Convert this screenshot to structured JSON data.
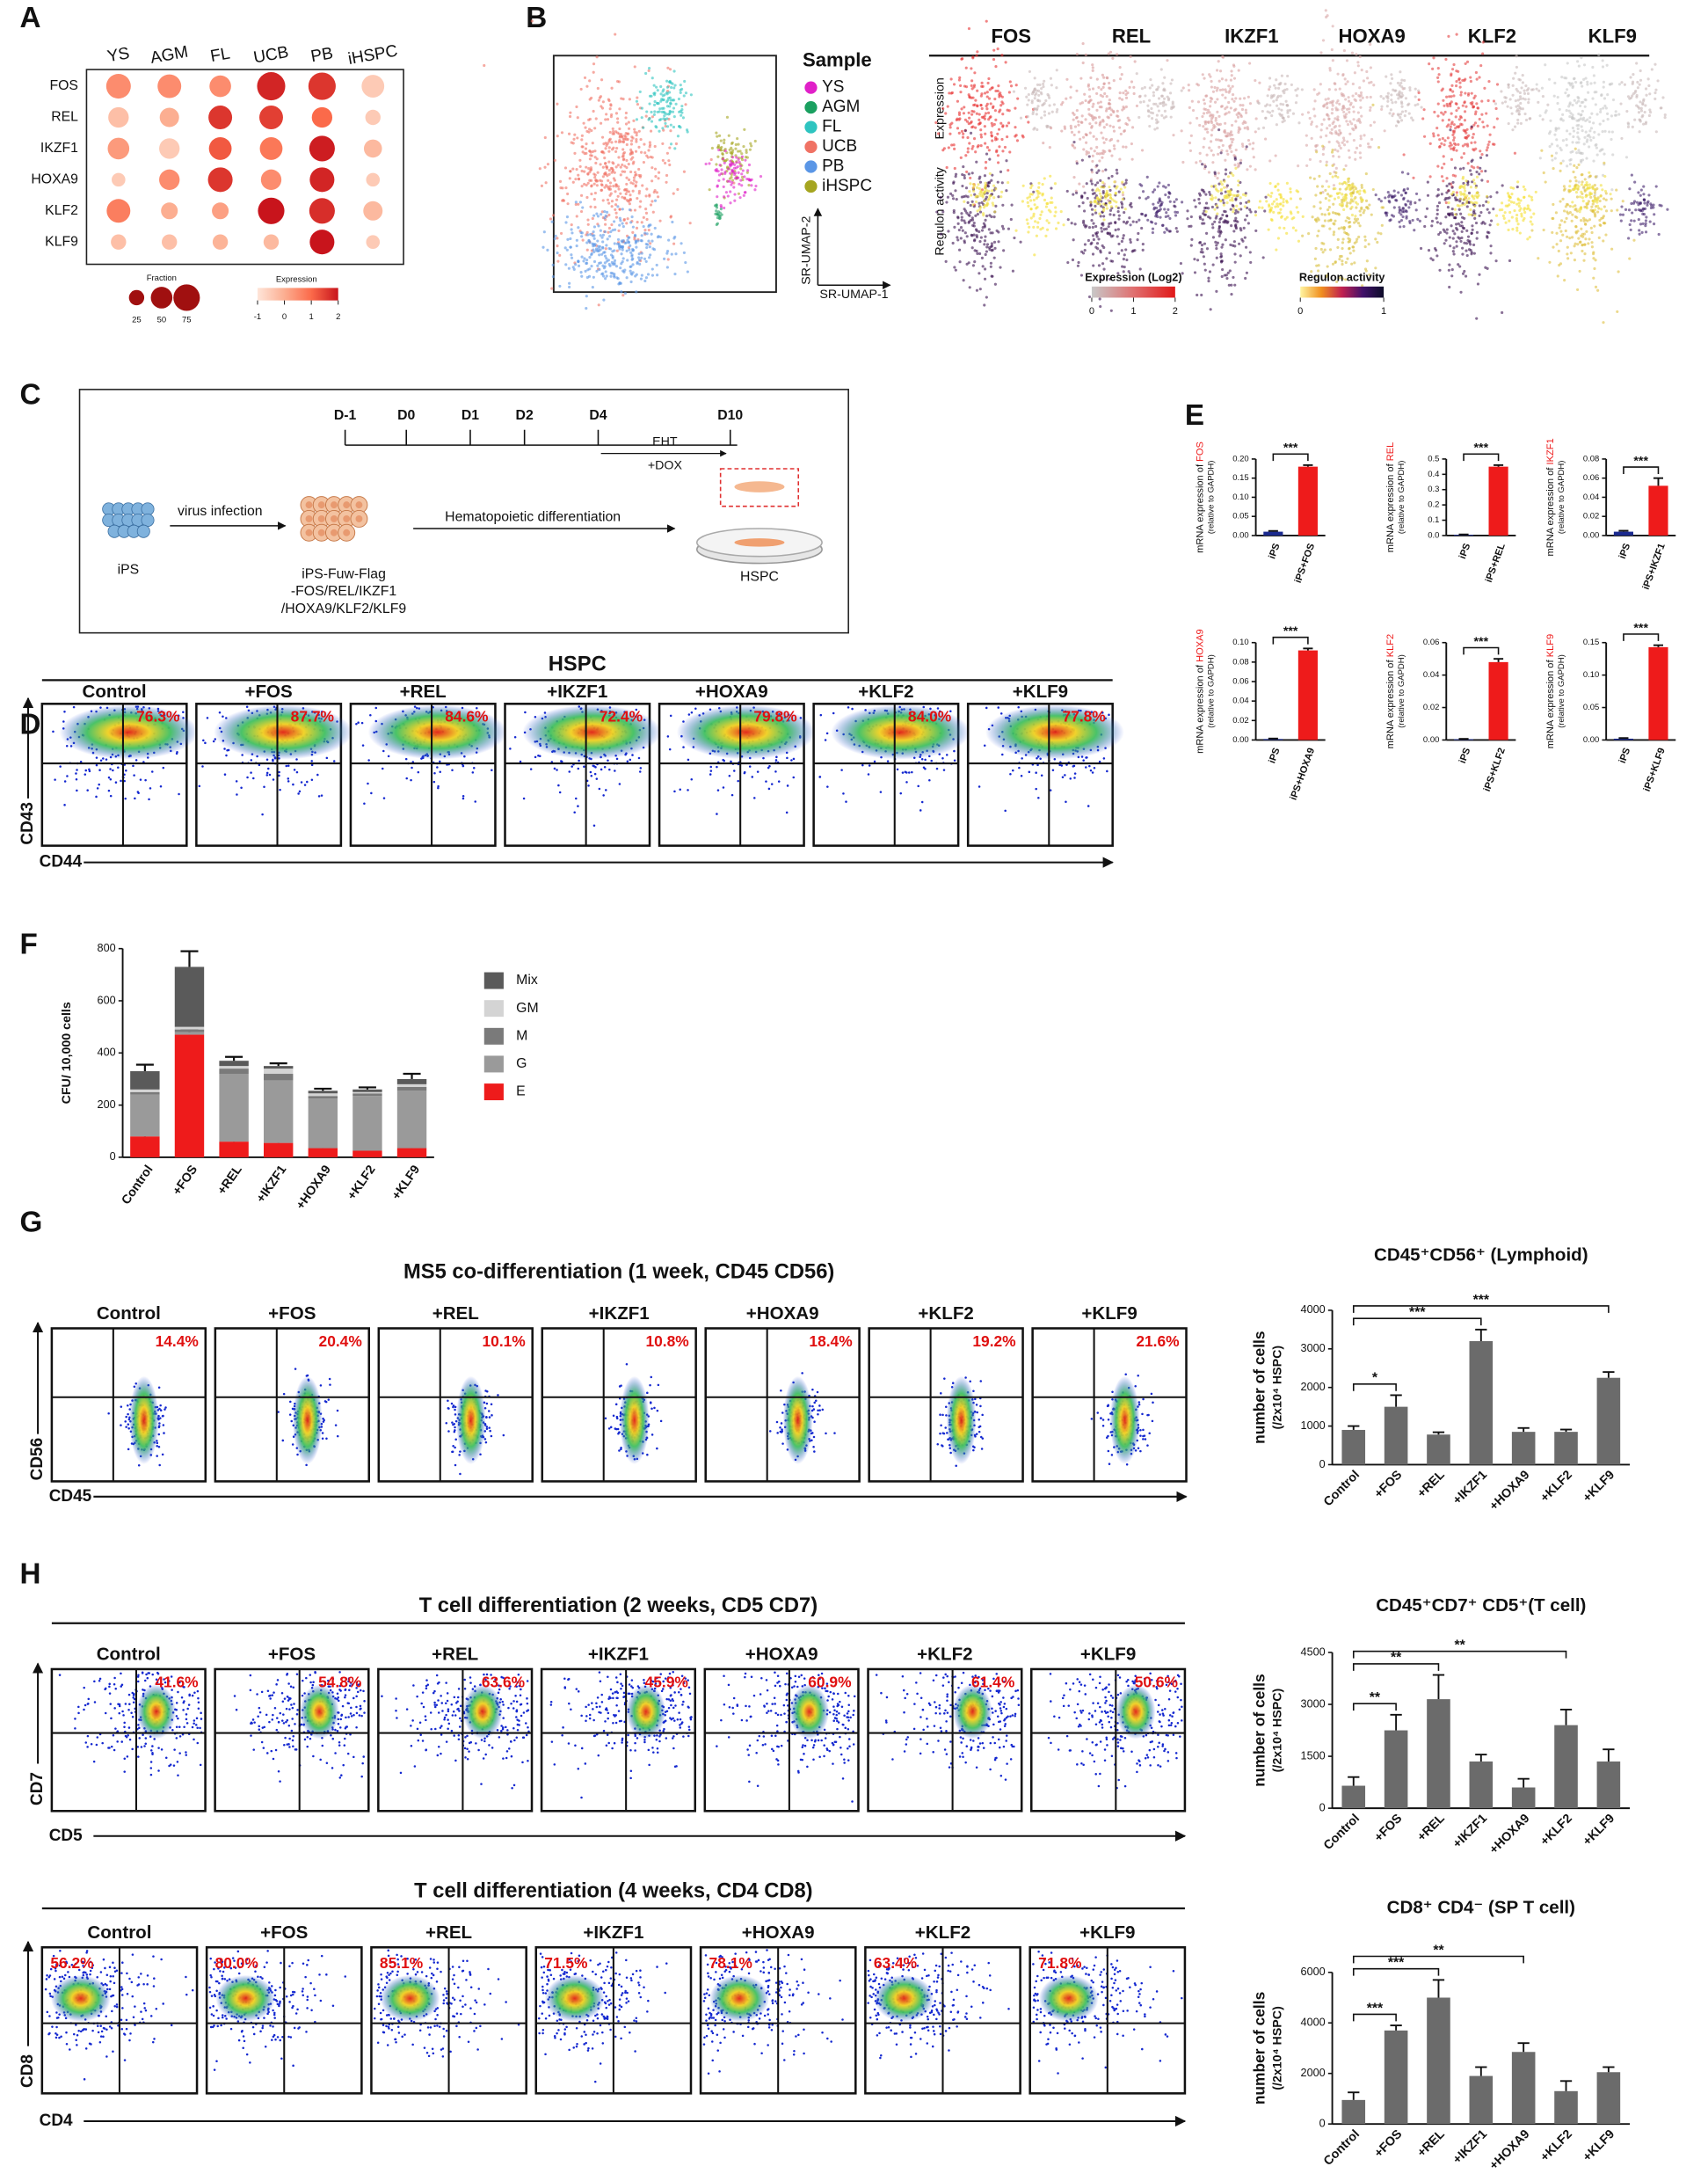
{
  "panel_labels": [
    "A",
    "B",
    "C",
    "D",
    "E",
    "F",
    "G",
    "H"
  ],
  "panel_a": {
    "samples": [
      "YS",
      "AGM",
      "FL",
      "UCB",
      "PB",
      "iHSPC"
    ],
    "genes": [
      "FOS",
      "REL",
      "IKZF1",
      "HOXA9",
      "KLF2",
      "KLF9"
    ],
    "fraction": [
      [
        65,
        60,
        50,
        85,
        80,
        55
      ],
      [
        45,
        40,
        60,
        60,
        45,
        25
      ],
      [
        50,
        45,
        55,
        55,
        70,
        35
      ],
      [
        20,
        45,
        65,
        45,
        65,
        20
      ],
      [
        60,
        30,
        30,
        75,
        70,
        40
      ],
      [
        25,
        25,
        25,
        25,
        65,
        20
      ]
    ],
    "expression": [
      [
        0.5,
        0.5,
        0.5,
        1.8,
        1.6,
        -0.5
      ],
      [
        -0.3,
        0,
        1.6,
        1.5,
        1.0,
        -0.5
      ],
      [
        0.3,
        -0.5,
        1.2,
        0.8,
        1.9,
        -0.2
      ],
      [
        -0.5,
        0.5,
        1.6,
        0.5,
        1.8,
        -0.5
      ],
      [
        0.7,
        0,
        0.2,
        2.0,
        1.7,
        -0.2
      ],
      [
        -0.3,
        -0.3,
        -0.1,
        -0.2,
        2.2,
        -0.5
      ]
    ],
    "fraction_title": "Fraction",
    "fraction_ticks": [
      25,
      50,
      75
    ],
    "expression_title": "Expression",
    "expression_ticks": [
      -1,
      0,
      1,
      2
    ]
  },
  "panel_b": {
    "legend_title": "Sample",
    "samples": [
      {
        "name": "YS",
        "color": "#e020c8"
      },
      {
        "name": "AGM",
        "color": "#1aa060"
      },
      {
        "name": "FL",
        "color": "#2ec4c0"
      },
      {
        "name": "UCB",
        "color": "#f07264"
      },
      {
        "name": "PB",
        "color": "#5a96e6"
      },
      {
        "name": "iHSPC",
        "color": "#a5a520"
      }
    ],
    "xlabel": "SR-UMAP-1",
    "ylabel": "SR-UMAP-2",
    "genes": [
      "FOS",
      "REL",
      "IKZF1",
      "HOXA9",
      "KLF2",
      "KLF9"
    ],
    "rows": [
      "Expression",
      "Regulon activity"
    ],
    "expression_scale": {
      "title": "Expression (Log2)",
      "ticks": [
        0,
        1,
        2
      ]
    },
    "regulon_scale": {
      "title": "Regulon activity",
      "ticks": [
        0,
        1
      ]
    }
  },
  "panel_c": {
    "timeline": [
      "D-1",
      "D0",
      "D1",
      "D2",
      "D4",
      "D10"
    ],
    "eht": "EHT",
    "dox": "+DOX",
    "step1": "virus infection",
    "step2": "Hematopoietic differentiation",
    "ips": "iPS",
    "construct": [
      "iPS-Fuw-Flag",
      "-FOS/REL/IKZF1",
      "/HOXA9/KLF2/KLF9"
    ],
    "hspc": "HSPC"
  },
  "flow_d": {
    "title": "HSPC",
    "conditions": [
      "Control",
      "+FOS",
      "+REL",
      "+IKZF1",
      "+HOXA9",
      "+KLF2",
      "+KLF9"
    ],
    "percents": [
      "76.3%",
      "87.7%",
      "84.6%",
      "72.4%",
      "79.8%",
      "84.0%",
      "77.8%"
    ],
    "ylabel": "CD43",
    "xlabel": "CD44"
  },
  "flow_g": {
    "title": "MS5 co-differentiation (1 week, CD45 CD56)",
    "conditions": [
      "Control",
      "+FOS",
      "+REL",
      "+IKZF1",
      "+HOXA9",
      "+KLF2",
      "+KLF9"
    ],
    "percents": [
      "14.4%",
      "20.4%",
      "10.1%",
      "10.8%",
      "18.4%",
      "19.2%",
      "21.6%"
    ],
    "ylabel": "CD56",
    "xlabel": "CD45"
  },
  "flow_h1": {
    "title": "T cell differentiation (2 weeks, CD5 CD7)",
    "conditions": [
      "Control",
      "+FOS",
      "+REL",
      "+IKZF1",
      "+HOXA9",
      "+KLF2",
      "+KLF9"
    ],
    "percents": [
      "41.6%",
      "54.8%",
      "63.6%",
      "45.9%",
      "60.9%",
      "61.4%",
      "50.6%"
    ],
    "ylabel": "CD7",
    "xlabel": "CD5"
  },
  "flow_h2": {
    "title": "T cell differentiation (4 weeks, CD4 CD8)",
    "conditions": [
      "Control",
      "+FOS",
      "+REL",
      "+IKZF1",
      "+HOXA9",
      "+KLF2",
      "+KLF9"
    ],
    "percents": [
      "56.2%",
      "80.0%",
      "85.1%",
      "71.5%",
      "78.1%",
      "63.4%",
      "71.8%"
    ],
    "ylabel": "CD8",
    "xlabel": "CD4"
  },
  "chart_data": [
    {
      "type": "bar",
      "ylabel": "mRNA expression of",
      "gene": "FOS",
      "ysub": "(relative to GAPDH)",
      "categories": [
        "iPS",
        "iPS+FOS"
      ],
      "values": [
        0.01,
        0.18
      ],
      "errors": [
        0.002,
        0.004
      ],
      "colors": [
        "#1b2a8f",
        "#ee1b1b"
      ],
      "ylim": [
        0,
        0.2
      ],
      "yticks": [
        {
          "value": 0,
          "label": "0.00"
        },
        0.05,
        {
          "value": 0.1,
          "label": "0.10"
        },
        0.15,
        {
          "value": 0.2,
          "label": "0.20"
        }
      ],
      "significance": [
        {
          "label": "***",
          "vs": "iPS+FOS"
        }
      ]
    },
    {
      "type": "bar",
      "ylabel": "mRNA expression of",
      "gene": "REL",
      "ysub": "(relative to GAPDH)",
      "categories": [
        "iPS",
        "iPS+REL"
      ],
      "values": [
        0.005,
        0.45
      ],
      "errors": [
        0.002,
        0.01
      ],
      "colors": [
        "#1b2a8f",
        "#ee1b1b"
      ],
      "ylim": [
        0,
        0.5
      ],
      "yticks": [
        {
          "value": 0,
          "label": "0.0"
        },
        0.1,
        0.2,
        0.3,
        0.4,
        0.5
      ],
      "significance": [
        {
          "label": "***",
          "vs": "iPS+REL"
        }
      ]
    },
    {
      "type": "bar",
      "ylabel": "mRNA expression of",
      "gene": "IKZF1",
      "ysub": "(relative to GAPDH)",
      "categories": [
        "iPS",
        "iPS+IKZF1"
      ],
      "values": [
        0.004,
        0.052
      ],
      "errors": [
        0.001,
        0.008
      ],
      "colors": [
        "#1b2a8f",
        "#ee1b1b"
      ],
      "ylim": [
        0,
        0.08
      ],
      "yticks": [
        {
          "value": 0,
          "label": "0.00"
        },
        0.02,
        0.04,
        0.06,
        0.08
      ],
      "significance": [
        {
          "label": "***",
          "vs": "iPS+IKZF1"
        }
      ]
    },
    {
      "type": "bar",
      "ylabel": "mRNA expression of",
      "gene": "HOXA9",
      "ysub": "(relative to GAPDH)",
      "categories": [
        "iPS",
        "iPS+HOXA9"
      ],
      "values": [
        0.001,
        0.092
      ],
      "errors": [
        0.0005,
        0.002
      ],
      "colors": [
        "#1b2a8f",
        "#ee1b1b"
      ],
      "ylim": [
        0,
        0.1
      ],
      "yticks": [
        {
          "value": 0,
          "label": "0.00"
        },
        0.02,
        0.04,
        0.06,
        0.08,
        {
          "value": 0.1,
          "label": "0.10"
        }
      ],
      "significance": [
        {
          "label": "***",
          "vs": "iPS+HOXA9"
        }
      ]
    },
    {
      "type": "bar",
      "ylabel": "mRNA expression of",
      "gene": "KLF2",
      "ysub": "(relative to GAPDH)",
      "categories": [
        "iPS",
        "iPS+KLF2"
      ],
      "values": [
        0.0005,
        0.048
      ],
      "errors": [
        0.0002,
        0.002
      ],
      "colors": [
        "#1b2a8f",
        "#ee1b1b"
      ],
      "ylim": [
        0,
        0.06
      ],
      "yticks": [
        {
          "value": 0,
          "label": "0.00"
        },
        0.02,
        0.04,
        0.06
      ],
      "significance": [
        {
          "label": "***",
          "vs": "iPS+KLF2"
        }
      ]
    },
    {
      "type": "bar",
      "ylabel": "mRNA expression of",
      "gene": "KLF9",
      "ysub": "(relative to GAPDH)",
      "categories": [
        "iPS",
        "iPS+KLF9"
      ],
      "values": [
        0.002,
        0.143
      ],
      "errors": [
        0.001,
        0.003
      ],
      "colors": [
        "#1b2a8f",
        "#ee1b1b"
      ],
      "ylim": [
        0,
        0.15
      ],
      "yticks": [
        {
          "value": 0,
          "label": "0.00"
        },
        0.05,
        {
          "value": 0.1,
          "label": "0.10"
        },
        0.15
      ],
      "significance": [
        {
          "label": "***",
          "vs": "iPS+KLF9"
        }
      ]
    },
    {
      "type": "stacked_bar",
      "ylabel": "CFU/ 10,000 cells",
      "categories": [
        "Control",
        "+FOS",
        "+REL",
        "+IKZF1",
        "+HOXA9",
        "+KLF2",
        "+KLF9"
      ],
      "ylim": [
        0,
        800
      ],
      "yticks": [
        0,
        200,
        400,
        600,
        800
      ],
      "series": [
        {
          "name": "E",
          "color": "#ee1b1b",
          "values": [
            80,
            470,
            60,
            55,
            35,
            25,
            35
          ],
          "errors": [
            10,
            20,
            10,
            10,
            8,
            5,
            8
          ]
        },
        {
          "name": "G",
          "color": "#9a9a9a",
          "values": [
            160,
            10,
            260,
            240,
            190,
            210,
            220
          ]
        },
        {
          "name": "M",
          "color": "#7a7a7a",
          "values": [
            10,
            10,
            20,
            25,
            10,
            10,
            15
          ]
        },
        {
          "name": "GM",
          "color": "#d4d4d4",
          "values": [
            10,
            10,
            10,
            20,
            10,
            5,
            10
          ]
        },
        {
          "name": "Mix",
          "color": "#5a5a5a",
          "values": [
            70,
            230,
            20,
            10,
            10,
            10,
            20
          ],
          "errors": [
            25,
            60,
            15,
            10,
            8,
            8,
            20
          ]
        }
      ]
    },
    {
      "type": "bar",
      "title": "CD45⁺CD56⁺ (Lymphoid)",
      "ylabel": "number of cells",
      "ysub": "(/2x10⁴ HSPC)",
      "categories": [
        "Control",
        "+FOS",
        "+REL",
        "+IKZF1",
        "+HOXA9",
        "+KLF2",
        "+KLF9"
      ],
      "values": [
        900,
        1500,
        780,
        3200,
        850,
        850,
        2250
      ],
      "errors": [
        100,
        300,
        60,
        300,
        100,
        60,
        150
      ],
      "color": "#6b6b6b",
      "ylim": [
        0,
        4000
      ],
      "yticks": [
        0,
        1000,
        2000,
        3000,
        4000
      ],
      "significance": [
        {
          "label": "*",
          "vs": "+FOS"
        },
        {
          "label": "***",
          "vs": "+IKZF1"
        },
        {
          "label": "***",
          "vs": "+KLF9"
        }
      ]
    },
    {
      "type": "bar",
      "title": "CD45⁺CD7⁺ CD5⁺(T cell)",
      "ylabel": "number of cells",
      "ysub": "(/2x10⁴ HSPC)",
      "categories": [
        "Control",
        "+FOS",
        "+REL",
        "+IKZF1",
        "+HOXA9",
        "+KLF2",
        "+KLF9"
      ],
      "values": [
        650,
        2250,
        3150,
        1350,
        600,
        2400,
        1350
      ],
      "errors": [
        250,
        450,
        700,
        200,
        250,
        450,
        350
      ],
      "color": "#6b6b6b",
      "ylim": [
        0,
        4500
      ],
      "yticks": [
        0,
        1500,
        3000,
        4500
      ],
      "significance": [
        {
          "label": "**",
          "vs": "+FOS"
        },
        {
          "label": "**",
          "vs": "+REL"
        },
        {
          "label": "**",
          "vs": "+KLF2"
        }
      ]
    },
    {
      "type": "bar",
      "title": "CD8⁺ CD4⁻ (SP T cell)",
      "ylabel": "number of cells",
      "ysub": "(/2x10⁴ HSPC)",
      "categories": [
        "Control",
        "+FOS",
        "+REL",
        "+IKZF1",
        "+HOXA9",
        "+KLF2",
        "+KLF9"
      ],
      "values": [
        950,
        3700,
        5000,
        1900,
        2850,
        1300,
        2050
      ],
      "errors": [
        300,
        200,
        700,
        350,
        350,
        400,
        200
      ],
      "color": "#6b6b6b",
      "ylim": [
        0,
        6000
      ],
      "yticks": [
        0,
        2000,
        4000,
        6000
      ],
      "significance": [
        {
          "label": "***",
          "vs": "+FOS"
        },
        {
          "label": "***",
          "vs": "+REL"
        },
        {
          "label": "**",
          "vs": "+HOXA9"
        }
      ]
    }
  ]
}
